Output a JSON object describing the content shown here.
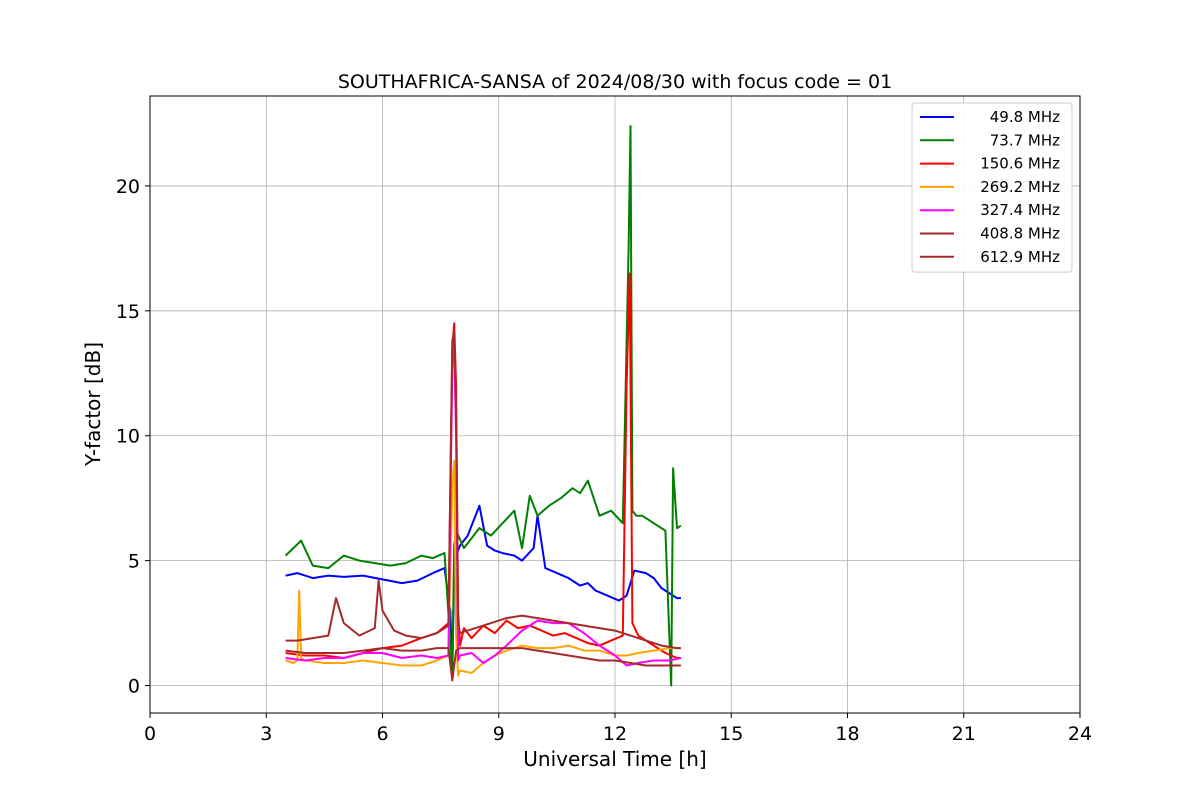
{
  "chart_data": {
    "type": "line",
    "title": "SOUTHAFRICA-SANSA of 2024/08/30 with focus code = 01",
    "xlabel": "Universal Time [h]",
    "ylabel": "Y-factor [dB]",
    "xlim": [
      0,
      24
    ],
    "ylim": [
      -1.1,
      23.6
    ],
    "xticks": [
      0,
      3,
      6,
      9,
      12,
      15,
      18,
      21,
      24
    ],
    "yticks": [
      0,
      5,
      10,
      15,
      20
    ],
    "grid": true,
    "legend_position": "upper right",
    "series": [
      {
        "name": "49.8 MHz",
        "color": "#0000ff",
        "x": [
          3.5,
          3.8,
          4.2,
          4.6,
          5.0,
          5.5,
          6.0,
          6.5,
          6.9,
          7.3,
          7.6,
          7.75,
          7.8,
          7.85,
          7.9,
          8.0,
          8.2,
          8.5,
          8.7,
          8.9,
          9.1,
          9.4,
          9.6,
          9.9,
          10.0,
          10.2,
          10.5,
          10.8,
          11.1,
          11.3,
          11.5,
          11.8,
          12.1,
          12.3,
          12.5,
          12.8,
          13.0,
          13.2,
          13.4,
          13.6,
          13.7
        ],
        "y": [
          4.4,
          4.5,
          4.3,
          4.4,
          4.35,
          4.4,
          4.25,
          4.1,
          4.2,
          4.5,
          4.7,
          3.0,
          0.5,
          4.8,
          5.2,
          5.6,
          6.0,
          7.2,
          5.6,
          5.4,
          5.3,
          5.2,
          5.0,
          5.5,
          6.8,
          4.7,
          4.5,
          4.3,
          4.0,
          4.1,
          3.8,
          3.6,
          3.4,
          3.6,
          4.6,
          4.5,
          4.3,
          3.9,
          3.7,
          3.5,
          3.5
        ]
      },
      {
        "name": "73.7 MHz",
        "color": "#008000",
        "x": [
          3.5,
          3.7,
          3.9,
          4.2,
          4.6,
          5.0,
          5.4,
          5.8,
          6.2,
          6.6,
          7.0,
          7.3,
          7.6,
          7.8,
          7.85,
          7.9,
          8.1,
          8.5,
          8.8,
          9.1,
          9.4,
          9.6,
          9.8,
          10.0,
          10.3,
          10.6,
          10.9,
          11.1,
          11.3,
          11.6,
          11.9,
          12.2,
          12.35,
          12.4,
          12.45,
          12.55,
          12.7,
          12.9,
          13.1,
          13.3,
          13.45,
          13.5,
          13.6,
          13.7
        ],
        "y": [
          5.2,
          5.5,
          5.8,
          4.8,
          4.7,
          5.2,
          5.0,
          4.9,
          4.8,
          4.9,
          5.2,
          5.1,
          5.3,
          0.5,
          5.6,
          6.2,
          5.5,
          6.3,
          6.0,
          6.5,
          7.0,
          5.5,
          7.6,
          6.8,
          7.2,
          7.5,
          7.9,
          7.7,
          8.2,
          6.8,
          7.0,
          6.5,
          17.5,
          22.4,
          7.0,
          6.8,
          6.8,
          6.6,
          6.4,
          6.2,
          0.0,
          8.7,
          6.3,
          6.4
        ]
      },
      {
        "name": "150.6 MHz",
        "color": "#ff0000",
        "x": [
          3.5,
          4.0,
          4.5,
          5.0,
          5.5,
          6.0,
          6.5,
          7.0,
          7.4,
          7.7,
          7.8,
          7.85,
          7.9,
          7.95,
          8.0,
          8.1,
          8.3,
          8.6,
          8.9,
          9.2,
          9.5,
          9.8,
          10.1,
          10.4,
          10.7,
          11.0,
          11.3,
          11.6,
          11.9,
          12.2,
          12.3,
          12.38,
          12.45,
          12.6,
          12.8,
          13.0,
          13.3,
          13.6,
          13.7
        ],
        "y": [
          1.3,
          1.2,
          1.2,
          1.1,
          1.3,
          1.5,
          1.6,
          1.9,
          2.1,
          2.5,
          13.5,
          14.5,
          12.0,
          3.0,
          1.6,
          2.3,
          1.9,
          2.4,
          2.1,
          2.6,
          2.3,
          2.4,
          2.2,
          2.0,
          2.1,
          1.9,
          1.7,
          1.6,
          1.8,
          2.0,
          12.0,
          16.5,
          2.5,
          2.0,
          1.8,
          1.6,
          1.3,
          1.1,
          1.1
        ]
      },
      {
        "name": "269.2 MHz",
        "color": "#ffa500",
        "x": [
          3.5,
          3.7,
          3.8,
          3.85,
          3.9,
          4.0,
          4.5,
          5.0,
          5.5,
          6.0,
          6.5,
          7.0,
          7.4,
          7.7,
          7.8,
          7.85,
          7.9,
          7.95,
          8.0,
          8.3,
          8.6,
          8.9,
          9.2,
          9.6,
          10.0,
          10.4,
          10.8,
          11.2,
          11.6,
          12.0,
          12.3,
          12.6,
          13.0,
          13.4,
          13.7
        ],
        "y": [
          1.0,
          0.9,
          1.0,
          3.8,
          1.1,
          1.0,
          0.9,
          0.9,
          1.0,
          0.9,
          0.8,
          0.8,
          1.0,
          1.2,
          8.0,
          9.0,
          2.0,
          0.4,
          0.6,
          0.5,
          0.9,
          1.2,
          1.4,
          1.6,
          1.5,
          1.5,
          1.6,
          1.4,
          1.4,
          1.2,
          1.2,
          1.3,
          1.4,
          1.5,
          1.5
        ]
      },
      {
        "name": "327.4 MHz",
        "color": "#ff00ff",
        "x": [
          3.5,
          4.0,
          4.5,
          5.0,
          5.5,
          6.0,
          6.5,
          7.0,
          7.4,
          7.7,
          7.8,
          7.85,
          7.9,
          7.95,
          8.0,
          8.3,
          8.6,
          8.9,
          9.2,
          9.6,
          10.0,
          10.4,
          10.8,
          11.2,
          11.6,
          12.0,
          12.3,
          12.6,
          13.0,
          13.4,
          13.7
        ],
        "y": [
          1.1,
          1.0,
          1.1,
          1.1,
          1.3,
          1.3,
          1.1,
          1.2,
          1.1,
          1.2,
          12.8,
          13.5,
          10.0,
          1.0,
          1.2,
          1.3,
          0.9,
          1.2,
          1.6,
          2.2,
          2.6,
          2.5,
          2.5,
          2.1,
          1.6,
          1.2,
          0.8,
          0.9,
          1.0,
          1.0,
          1.1
        ]
      },
      {
        "name": "408.8 MHz",
        "color": "#a52a2a",
        "x": [
          3.5,
          3.8,
          4.2,
          4.6,
          4.8,
          5.0,
          5.4,
          5.8,
          5.9,
          6.0,
          6.3,
          6.6,
          7.0,
          7.4,
          7.7,
          7.8,
          7.85,
          7.9,
          7.95,
          8.0,
          8.4,
          8.8,
          9.2,
          9.6,
          10.0,
          10.4,
          10.8,
          11.2,
          11.6,
          12.0,
          12.4,
          12.8,
          13.2,
          13.6,
          13.7
        ],
        "y": [
          1.8,
          1.8,
          1.9,
          2.0,
          3.5,
          2.5,
          2.0,
          2.3,
          4.2,
          3.0,
          2.2,
          2.0,
          1.9,
          2.1,
          2.4,
          13.8,
          14.2,
          11.0,
          2.5,
          2.1,
          2.3,
          2.5,
          2.7,
          2.8,
          2.7,
          2.6,
          2.5,
          2.4,
          2.3,
          2.2,
          2.0,
          1.8,
          1.6,
          1.5,
          1.5
        ]
      },
      {
        "name": "612.9 MHz",
        "color": "#a52a2a",
        "x": [
          3.5,
          4.0,
          4.5,
          5.0,
          5.5,
          6.0,
          6.5,
          7.0,
          7.4,
          7.7,
          7.8,
          7.9,
          8.0,
          8.4,
          8.8,
          9.2,
          9.6,
          10.0,
          10.4,
          10.8,
          11.2,
          11.6,
          12.0,
          12.4,
          12.8,
          13.2,
          13.6,
          13.7
        ],
        "y": [
          1.4,
          1.3,
          1.3,
          1.3,
          1.4,
          1.5,
          1.4,
          1.4,
          1.5,
          1.5,
          0.2,
          1.4,
          1.5,
          1.5,
          1.5,
          1.5,
          1.5,
          1.4,
          1.3,
          1.2,
          1.1,
          1.0,
          1.0,
          0.9,
          0.8,
          0.8,
          0.8,
          0.8
        ]
      }
    ]
  }
}
